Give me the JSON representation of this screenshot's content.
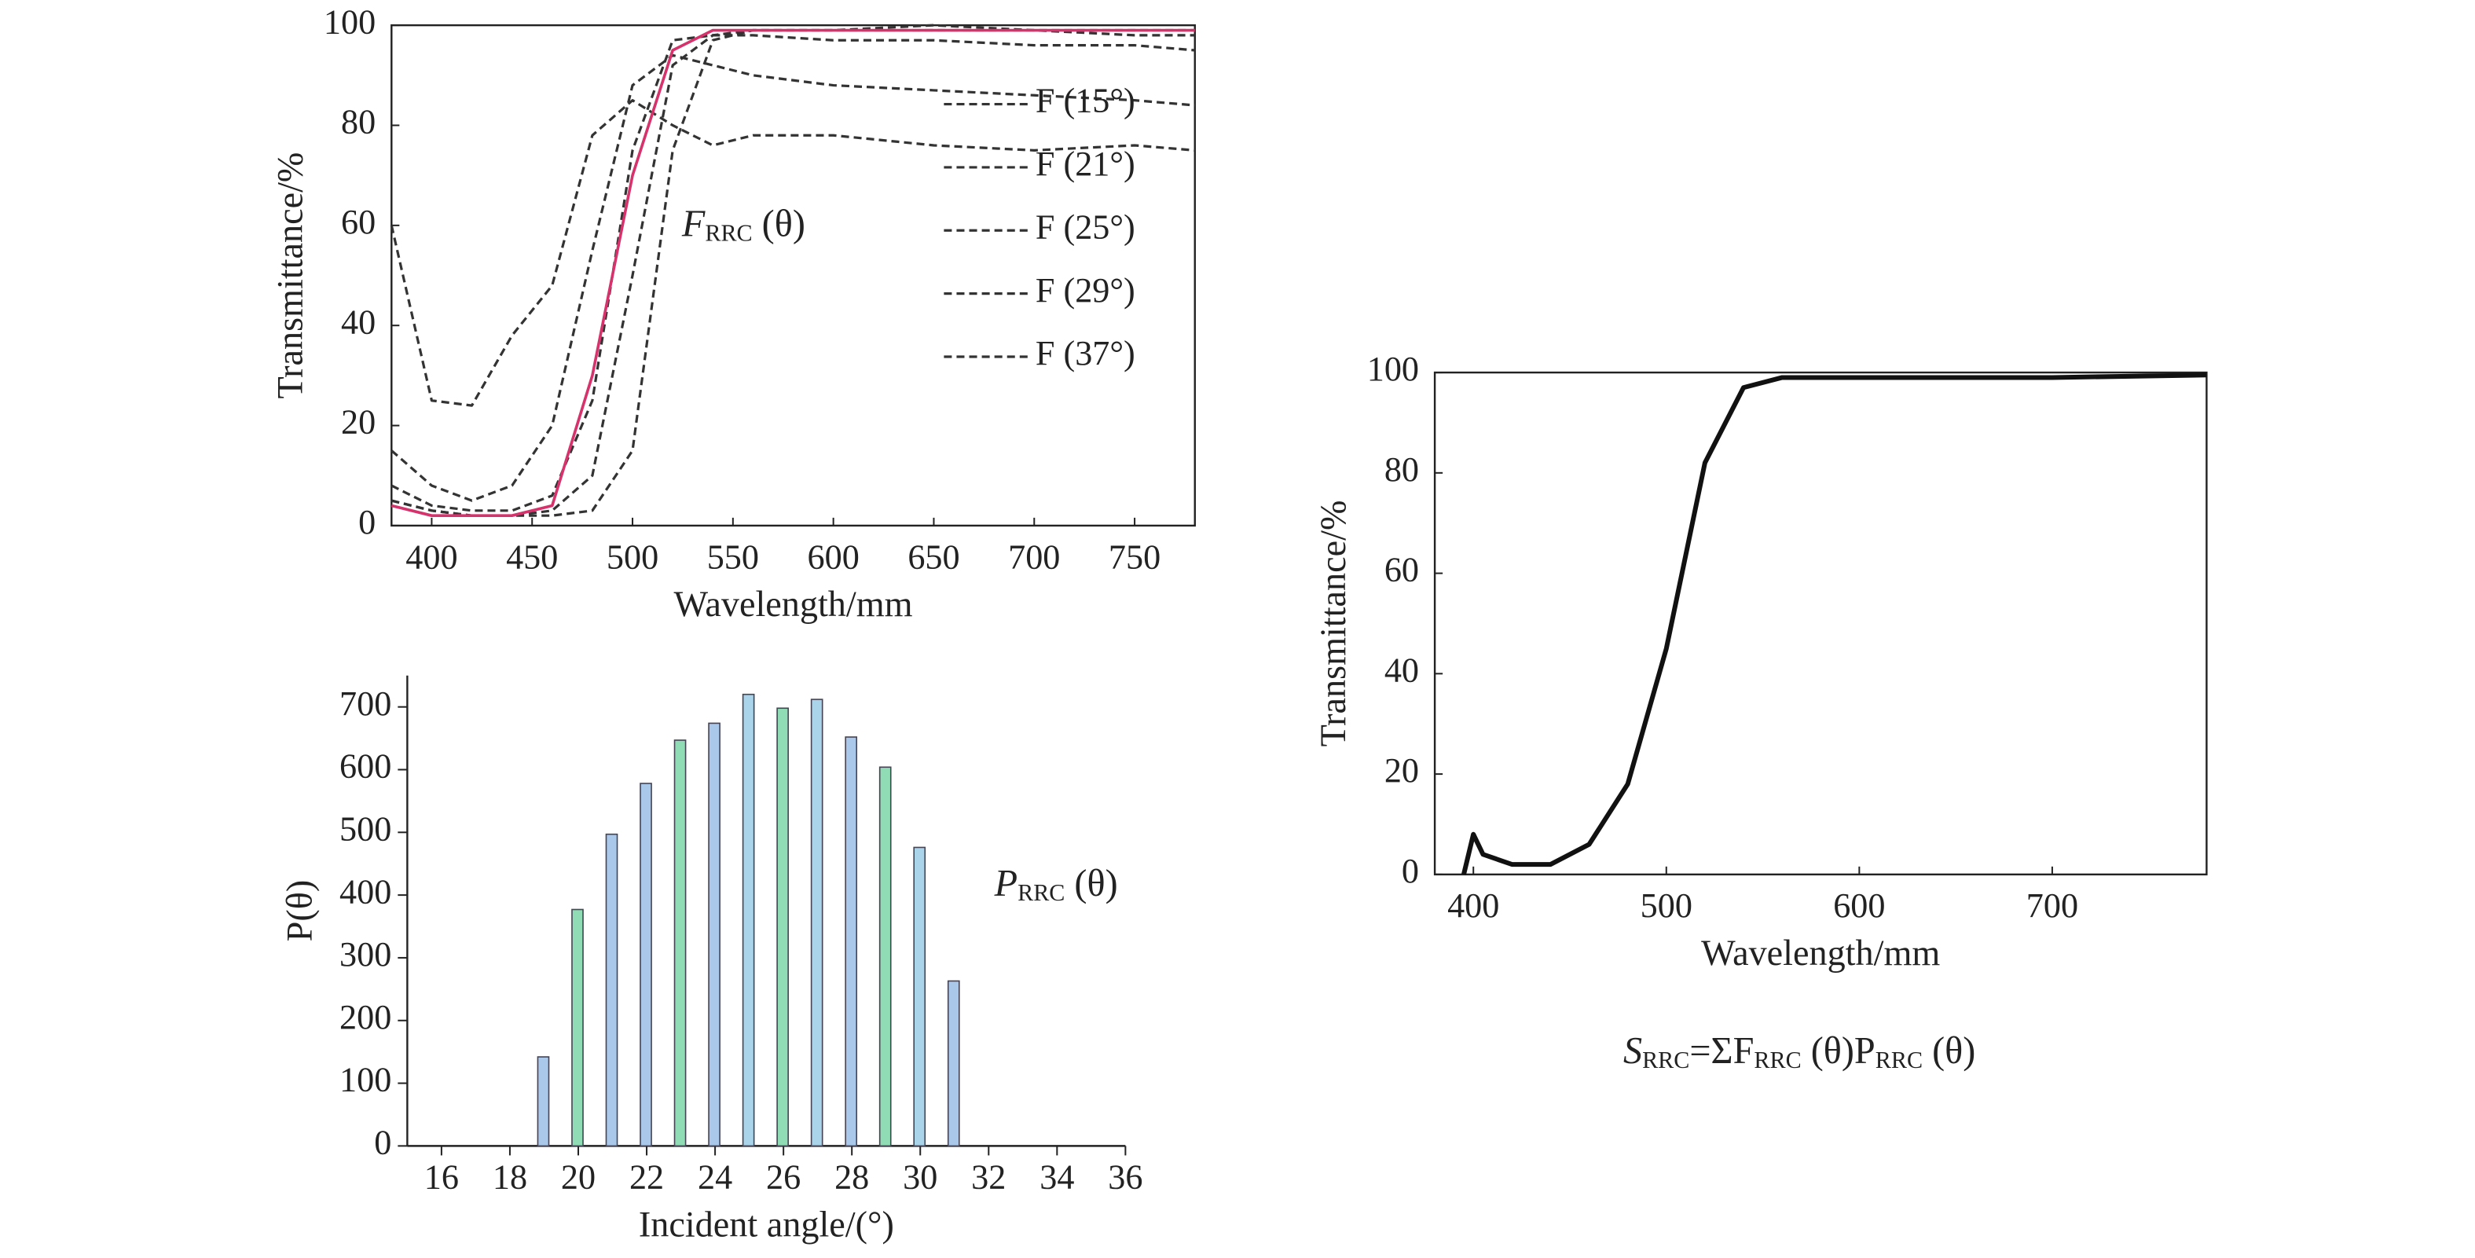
{
  "chart_data": [
    {
      "type": "line",
      "xlabel": "Wavelength/mm",
      "ylabel": "Transmittance/%",
      "xlim": [
        380,
        780
      ],
      "xticks": [
        400,
        450,
        500,
        550,
        600,
        650,
        700,
        750
      ],
      "ylim": [
        0,
        100
      ],
      "yticks": [
        0,
        20,
        40,
        60,
        80,
        100
      ],
      "frame": true,
      "legend": "upper right",
      "x": [
        380,
        400,
        420,
        440,
        460,
        480,
        500,
        520,
        540,
        560,
        600,
        650,
        700,
        750,
        780
      ],
      "series": [
        {
          "name": "F (15°)",
          "color": "#333333",
          "style": "dashed",
          "values": [
            5,
            3,
            2,
            2,
            2,
            3,
            15,
            75,
            97,
            99,
            99,
            100,
            99,
            99,
            99
          ]
        },
        {
          "name": "F (21°)",
          "color": "#333333",
          "style": "dashed",
          "values": [
            5,
            3,
            2,
            2,
            3,
            10,
            50,
            92,
            98,
            99,
            99,
            99,
            99,
            98,
            98
          ]
        },
        {
          "name": "F (25°)",
          "color": "#333333",
          "style": "dashed",
          "values": [
            8,
            4,
            3,
            3,
            6,
            25,
            75,
            97,
            98,
            98,
            97,
            97,
            96,
            96,
            95
          ]
        },
        {
          "name": "F (29°)",
          "color": "#333333",
          "style": "dashed",
          "values": [
            15,
            8,
            5,
            8,
            20,
            55,
            88,
            94,
            92,
            90,
            88,
            87,
            86,
            85,
            84
          ]
        },
        {
          "name": "F (37°)",
          "color": "#333333",
          "style": "dashed",
          "values": [
            60,
            25,
            24,
            38,
            48,
            78,
            85,
            80,
            76,
            78,
            78,
            76,
            75,
            76,
            75
          ]
        },
        {
          "color": "#d6336c",
          "style": "solid",
          "values": [
            4,
            2,
            2,
            2,
            4,
            30,
            70,
            95,
            99,
            99,
            99,
            99,
            99,
            99,
            99
          ]
        }
      ],
      "annotation": [
        {
          "text": "F",
          "italic": true,
          "sub": false
        },
        {
          "text": "RRC",
          "italic": false,
          "sub": true
        },
        {
          "text": " (θ)",
          "italic": false,
          "sub": false
        }
      ]
    },
    {
      "type": "bar",
      "xlabel": "Incident angle/(°)",
      "ylabel": "P(θ)",
      "xlim": [
        15,
        36
      ],
      "xticks": [
        16,
        18,
        20,
        22,
        24,
        26,
        28,
        30,
        32,
        34,
        36
      ],
      "ylim": [
        0,
        750
      ],
      "yticks": [
        0,
        100,
        200,
        300,
        400,
        500,
        600,
        700
      ],
      "frame": false,
      "x": [
        19,
        20,
        21,
        22,
        23,
        24,
        25,
        26,
        27,
        28,
        29,
        30,
        31
      ],
      "values": [
        142,
        377,
        497,
        578,
        647,
        674,
        720,
        698,
        712,
        652,
        604,
        476,
        263
      ],
      "colors": [
        "#a9c8ea",
        "#90dcb4",
        "#a9c8ea",
        "#a9c8ea",
        "#90dcb4",
        "#a9c8ea",
        "#a9d4ea",
        "#90dcb4",
        "#a9d4ea",
        "#a9c8ea",
        "#90dcb4",
        "#a9d4ea",
        "#a9c8ea"
      ],
      "annotation": [
        {
          "text": "P",
          "italic": true,
          "sub": false
        },
        {
          "text": "RRC",
          "italic": false,
          "sub": true
        },
        {
          "text": " (θ)",
          "italic": false,
          "sub": false
        }
      ]
    },
    {
      "type": "line",
      "xlabel": "Wavelength/mm",
      "ylabel": "Transmittance/%",
      "xlim": [
        380,
        780
      ],
      "xticks": [
        400,
        500,
        600,
        700
      ],
      "ylim": [
        0,
        100
      ],
      "yticks": [
        0,
        20,
        40,
        60,
        80,
        100
      ],
      "frame": true,
      "x": [
        395,
        400,
        405,
        420,
        440,
        460,
        480,
        500,
        520,
        540,
        560,
        600,
        700,
        780
      ],
      "series": [
        {
          "color": "#111111",
          "style": "solid",
          "values": [
            0,
            8,
            4,
            2,
            2,
            6,
            18,
            45,
            82,
            97,
            99,
            99,
            99,
            99.5
          ]
        }
      ],
      "annotation": [
        {
          "text": "S",
          "italic": true,
          "sub": false
        },
        {
          "text": "RRC",
          "italic": false,
          "sub": true
        },
        {
          "text": "=ΣF",
          "italic": false,
          "sub": false
        },
        {
          "text": "RRC",
          "italic": false,
          "sub": true
        },
        {
          "text": " (θ)P",
          "italic": false,
          "sub": false
        },
        {
          "text": "RRC",
          "italic": false,
          "sub": true
        },
        {
          "text": " (θ)",
          "italic": false,
          "sub": false
        }
      ]
    }
  ]
}
